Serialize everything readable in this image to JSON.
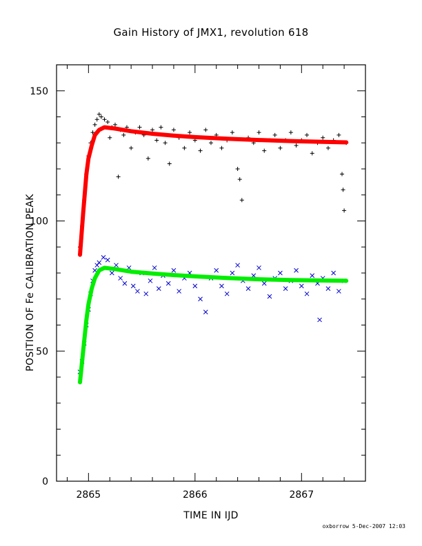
{
  "page": {
    "title": "Gain History of JMX1, revolution 618",
    "credit": "oxborrow  5-Dec-2007 12:03"
  },
  "colors": {
    "upper_points": "#000000",
    "upper_fit": "#ff0000",
    "upper_early": "#b00000",
    "lower_points": "#0000cc",
    "lower_fit": "#00ee00",
    "axes": "#000000"
  },
  "chart_data": {
    "type": "scatter",
    "title": "Gain History of JMX1, revolution 618",
    "xlabel": "TIME IN IJD",
    "ylabel": "POSITION OF Fe CALIBRATION PEAK",
    "xlim": [
      2864.7,
      2867.6
    ],
    "ylim": [
      0,
      160
    ],
    "x_ticks": [
      2865,
      2866,
      2867
    ],
    "x_tick_labels": [
      "2865",
      "2866",
      "2867"
    ],
    "y_ticks": [
      0,
      50,
      100,
      150
    ],
    "y_tick_labels": [
      "0",
      "50",
      "100",
      "150"
    ],
    "grid": false,
    "legend": "none",
    "series": [
      {
        "marker": "plus",
        "color": "#000000",
        "points": [
          [
            2864.92,
            90
          ],
          [
            2864.94,
            98
          ],
          [
            2864.96,
            108
          ],
          [
            2864.98,
            118
          ],
          [
            2865.0,
            125
          ],
          [
            2865.02,
            130
          ],
          [
            2865.04,
            134
          ],
          [
            2865.06,
            137
          ],
          [
            2865.08,
            139
          ],
          [
            2865.1,
            141
          ],
          [
            2865.12,
            140
          ],
          [
            2865.15,
            139
          ],
          [
            2865.18,
            138
          ],
          [
            2865.2,
            132
          ],
          [
            2865.22,
            136
          ],
          [
            2865.25,
            137
          ],
          [
            2865.28,
            117
          ],
          [
            2865.3,
            135
          ],
          [
            2865.33,
            133
          ],
          [
            2865.36,
            136
          ],
          [
            2865.4,
            128
          ],
          [
            2865.44,
            134
          ],
          [
            2865.48,
            136
          ],
          [
            2865.52,
            133
          ],
          [
            2865.56,
            124
          ],
          [
            2865.6,
            135
          ],
          [
            2865.64,
            131
          ],
          [
            2865.68,
            136
          ],
          [
            2865.72,
            130
          ],
          [
            2865.76,
            122
          ],
          [
            2865.8,
            135
          ],
          [
            2865.85,
            132
          ],
          [
            2865.9,
            128
          ],
          [
            2865.95,
            134
          ],
          [
            2866.0,
            131
          ],
          [
            2866.05,
            127
          ],
          [
            2866.1,
            135
          ],
          [
            2866.15,
            130
          ],
          [
            2866.2,
            133
          ],
          [
            2866.25,
            128
          ],
          [
            2866.3,
            131
          ],
          [
            2866.35,
            134
          ],
          [
            2866.4,
            120
          ],
          [
            2866.42,
            116
          ],
          [
            2866.44,
            108
          ],
          [
            2866.5,
            132
          ],
          [
            2866.55,
            130
          ],
          [
            2866.6,
            134
          ],
          [
            2866.65,
            127
          ],
          [
            2866.7,
            131
          ],
          [
            2866.75,
            133
          ],
          [
            2866.8,
            128
          ],
          [
            2866.85,
            131
          ],
          [
            2866.9,
            134
          ],
          [
            2866.95,
            129
          ],
          [
            2867.0,
            131
          ],
          [
            2867.05,
            133
          ],
          [
            2867.1,
            126
          ],
          [
            2867.15,
            130
          ],
          [
            2867.2,
            132
          ],
          [
            2867.25,
            128
          ],
          [
            2867.3,
            131
          ],
          [
            2867.35,
            133
          ],
          [
            2867.38,
            118
          ],
          [
            2867.39,
            112
          ],
          [
            2867.4,
            104
          ],
          [
            2867.42,
            130
          ]
        ]
      },
      {
        "marker": "line",
        "color": "#ff0000",
        "points": [
          [
            2864.92,
            87
          ],
          [
            2864.95,
            103
          ],
          [
            2864.98,
            118
          ],
          [
            2865.0,
            124
          ],
          [
            2865.03,
            129
          ],
          [
            2865.06,
            133
          ],
          [
            2865.1,
            135
          ],
          [
            2865.15,
            136
          ],
          [
            2865.25,
            135.5
          ],
          [
            2865.4,
            134.5
          ],
          [
            2865.6,
            133.5
          ],
          [
            2865.8,
            132.8
          ],
          [
            2866.0,
            132.2
          ],
          [
            2866.3,
            131.6
          ],
          [
            2866.6,
            131.1
          ],
          [
            2866.9,
            130.7
          ],
          [
            2867.2,
            130.4
          ],
          [
            2867.42,
            130.2
          ]
        ]
      },
      {
        "marker": "cross",
        "color": "#0000cc",
        "points": [
          [
            2864.92,
            42
          ],
          [
            2864.94,
            46
          ],
          [
            2864.96,
            53
          ],
          [
            2864.98,
            60
          ],
          [
            2865.0,
            66
          ],
          [
            2865.02,
            72
          ],
          [
            2865.04,
            77
          ],
          [
            2865.06,
            81
          ],
          [
            2865.08,
            83
          ],
          [
            2865.1,
            84
          ],
          [
            2865.14,
            86
          ],
          [
            2865.18,
            85
          ],
          [
            2865.22,
            80
          ],
          [
            2865.26,
            83
          ],
          [
            2865.3,
            78
          ],
          [
            2865.34,
            76
          ],
          [
            2865.38,
            82
          ],
          [
            2865.42,
            75
          ],
          [
            2865.46,
            73
          ],
          [
            2865.5,
            80
          ],
          [
            2865.54,
            72
          ],
          [
            2865.58,
            77
          ],
          [
            2865.62,
            82
          ],
          [
            2865.66,
            74
          ],
          [
            2865.7,
            79
          ],
          [
            2865.75,
            76
          ],
          [
            2865.8,
            81
          ],
          [
            2865.85,
            73
          ],
          [
            2865.9,
            78
          ],
          [
            2865.95,
            80
          ],
          [
            2866.0,
            75
          ],
          [
            2866.05,
            70
          ],
          [
            2866.1,
            65
          ],
          [
            2866.15,
            78
          ],
          [
            2866.2,
            81
          ],
          [
            2866.25,
            75
          ],
          [
            2866.3,
            72
          ],
          [
            2866.35,
            80
          ],
          [
            2866.4,
            83
          ],
          [
            2866.45,
            77
          ],
          [
            2866.5,
            74
          ],
          [
            2866.55,
            79
          ],
          [
            2866.6,
            82
          ],
          [
            2866.65,
            76
          ],
          [
            2866.7,
            71
          ],
          [
            2866.75,
            78
          ],
          [
            2866.8,
            80
          ],
          [
            2866.85,
            74
          ],
          [
            2866.9,
            77
          ],
          [
            2866.95,
            81
          ],
          [
            2867.0,
            75
          ],
          [
            2867.05,
            72
          ],
          [
            2867.1,
            79
          ],
          [
            2867.15,
            76
          ],
          [
            2867.17,
            62
          ],
          [
            2867.2,
            78
          ],
          [
            2867.25,
            74
          ],
          [
            2867.3,
            80
          ],
          [
            2867.35,
            73
          ],
          [
            2867.4,
            77
          ]
        ]
      },
      {
        "marker": "line",
        "color": "#00ee00",
        "points": [
          [
            2864.92,
            38
          ],
          [
            2864.95,
            50
          ],
          [
            2864.98,
            62
          ],
          [
            2865.0,
            68
          ],
          [
            2865.03,
            74
          ],
          [
            2865.06,
            78
          ],
          [
            2865.1,
            81
          ],
          [
            2865.15,
            82
          ],
          [
            2865.25,
            81.5
          ],
          [
            2865.4,
            80.5
          ],
          [
            2865.6,
            79.8
          ],
          [
            2865.8,
            79.2
          ],
          [
            2866.0,
            78.7
          ],
          [
            2866.3,
            78.1
          ],
          [
            2866.6,
            77.6
          ],
          [
            2866.9,
            77.3
          ],
          [
            2867.2,
            77.1
          ],
          [
            2867.42,
            77
          ]
        ]
      }
    ]
  }
}
